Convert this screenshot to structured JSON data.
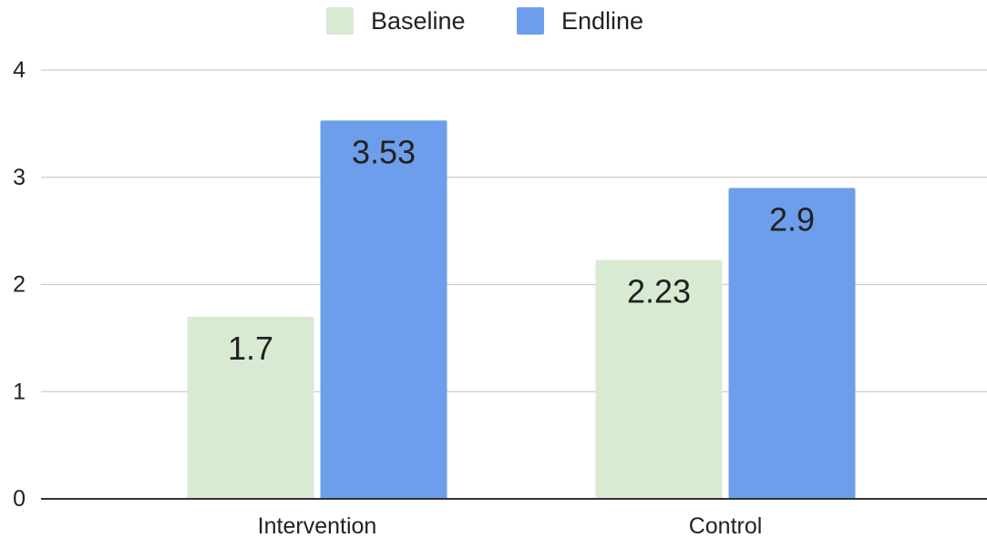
{
  "chart_data": {
    "type": "bar",
    "title": "",
    "xlabel": "",
    "ylabel": "",
    "categories": [
      "Intervention",
      "Control"
    ],
    "series": [
      {
        "name": "Baseline",
        "values": [
          1.7,
          2.23
        ],
        "labels": [
          "1.7",
          "2.23"
        ],
        "color": "#d9ead3"
      },
      {
        "name": "Endline",
        "values": [
          3.53,
          2.9
        ],
        "labels": [
          "3.53",
          "2.9"
        ],
        "color": "#6d9eeb"
      }
    ],
    "ylim": [
      0,
      4
    ],
    "yticks": [
      "0",
      "1",
      "2",
      "3",
      "4"
    ],
    "grid": true,
    "legend_position": "top-center",
    "data_labels": true
  }
}
